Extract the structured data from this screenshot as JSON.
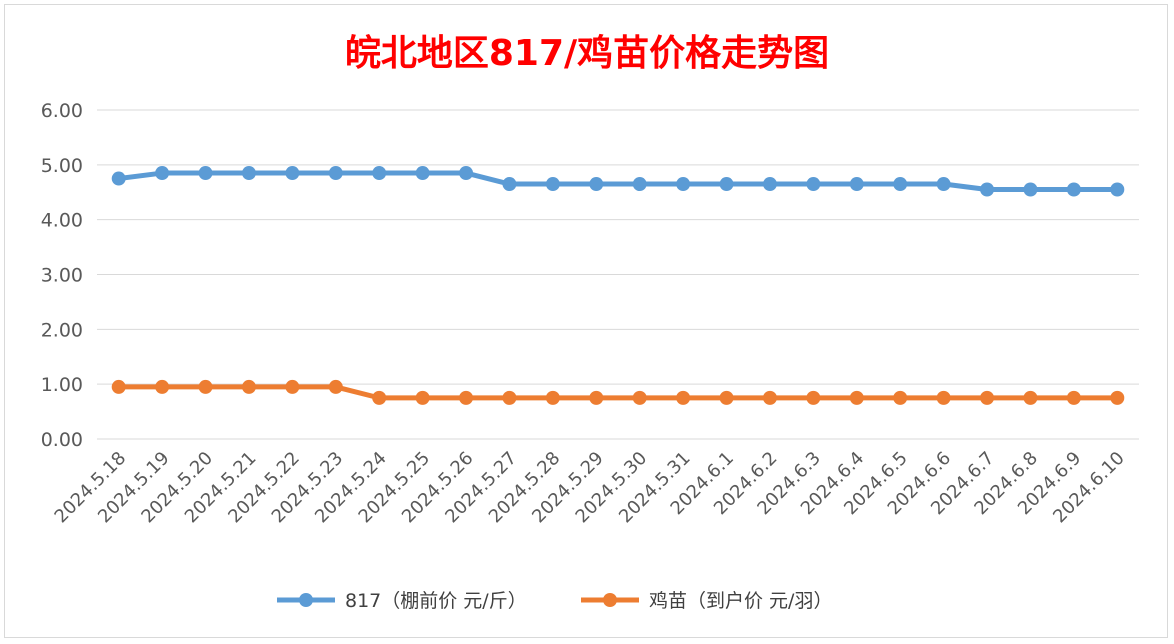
{
  "chart_data": {
    "type": "line",
    "title": "皖北地区817/鸡苗价格走势图",
    "categories": [
      "2024.5.18",
      "2024.5.19",
      "2024.5.20",
      "2024.5.21",
      "2024.5.22",
      "2024.5.23",
      "2024.5.24",
      "2024.5.25",
      "2024.5.26",
      "2024.5.27",
      "2024.5.28",
      "2024.5.29",
      "2024.5.30",
      "2024.5.31",
      "2024.6.1",
      "2024.6.2",
      "2024.6.3",
      "2024.6.4",
      "2024.6.5",
      "2024.6.6",
      "2024.6.7",
      "2024.6.8",
      "2024.6.9",
      "2024.6.10"
    ],
    "y_ticks": [
      "0.00",
      "1.00",
      "2.00",
      "3.00",
      "4.00",
      "5.00",
      "6.00"
    ],
    "ylim": [
      0,
      6
    ],
    "grid": "horizontal",
    "legend_position": "bottom",
    "series": [
      {
        "name": "817（棚前价 元/斤）",
        "color": "#5b9bd5",
        "values": [
          4.75,
          4.85,
          4.85,
          4.85,
          4.85,
          4.85,
          4.85,
          4.85,
          4.85,
          4.65,
          4.65,
          4.65,
          4.65,
          4.65,
          4.65,
          4.65,
          4.65,
          4.65,
          4.65,
          4.65,
          4.55,
          4.55,
          4.55,
          4.55
        ]
      },
      {
        "name": "鸡苗（到户价 元/羽）",
        "color": "#ed7d31",
        "values": [
          0.95,
          0.95,
          0.95,
          0.95,
          0.95,
          0.95,
          0.75,
          0.75,
          0.75,
          0.75,
          0.75,
          0.75,
          0.75,
          0.75,
          0.75,
          0.75,
          0.75,
          0.75,
          0.75,
          0.75,
          0.75,
          0.75,
          0.75,
          0.75
        ]
      }
    ]
  },
  "colors": {
    "title": "#ff0000",
    "grid": "#d9d9d9",
    "tick_text": "#595959"
  }
}
